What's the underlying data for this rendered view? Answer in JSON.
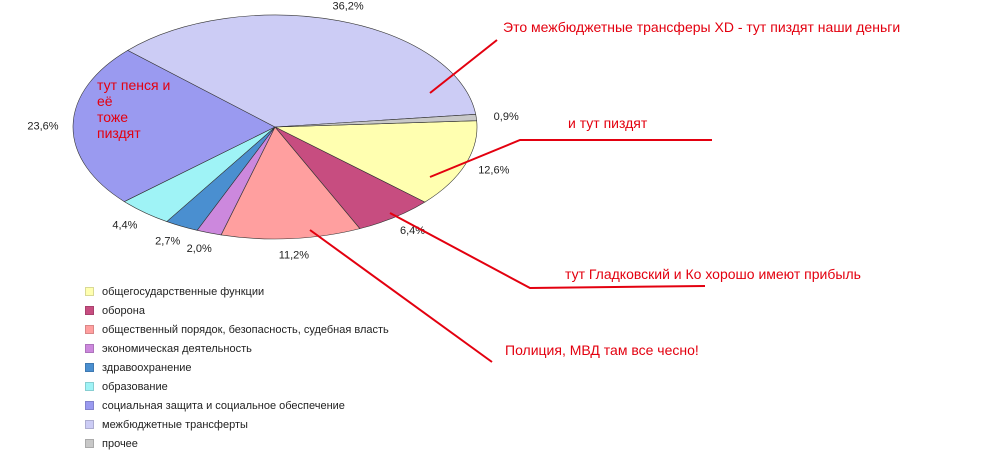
{
  "chart_data": {
    "type": "pie",
    "categories": [
      "общегосударственные функции",
      "оборона",
      "общественный порядок, безопасность, судебная власть",
      "экономическая деятельность",
      "здравоохранение",
      "образование",
      "социальная защита и социальное обеспечение",
      "межбюджетные трансферты",
      "прочее"
    ],
    "values": [
      12.6,
      6.4,
      11.2,
      2.0,
      2.7,
      4.4,
      23.6,
      36.2,
      0.9
    ],
    "value_labels": [
      "12,6%",
      "6,4%",
      "11,2%",
      "2,0%",
      "2,7%",
      "4,4%",
      "23,6%",
      "36,2%",
      "0,9%"
    ],
    "colors": [
      "#ffffb0",
      "#c74d80",
      "#ff9f9f",
      "#cc88dd",
      "#4a8fd0",
      "#9ff3f6",
      "#9a9af0",
      "#ccccf5",
      "#c8c8c8"
    ],
    "legend_position": "bottom-left"
  },
  "annotations": {
    "transfers": "Это межбюджетные трансферы XD  - тут пиздят наши деньги",
    "general": "и тут пиздят",
    "defense": "тут Гладковский и Ко хорошо имеют прибыль",
    "police": "Полиция, МВД там все чесно!",
    "social_line1": "тут пенся и",
    "social_line2": "её",
    "social_line3": "тоже",
    "social_line4": "пиздят"
  },
  "annotation_color": "#e3000f"
}
